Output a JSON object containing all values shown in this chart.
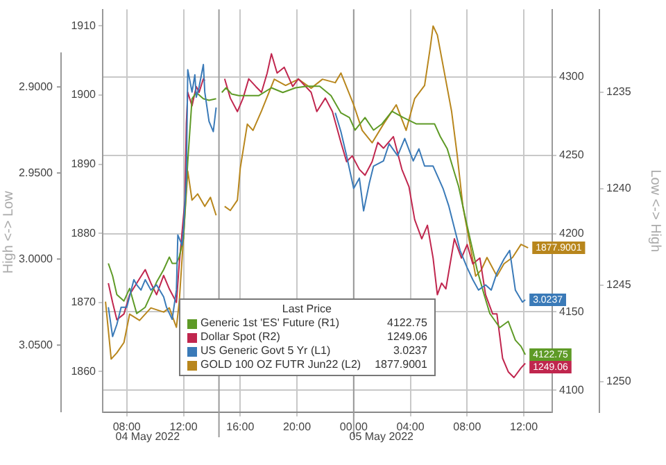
{
  "chart_data": [
    {
      "type": "line",
      "legend": "bottom",
      "legend_title": "Last Price",
      "grid": true,
      "marker": "none",
      "line_style": "solid",
      "y3label": "Low <-> High",
      "xlim": [
        "2022-05-04T06:18",
        "2022-05-05T14:00"
      ],
      "xticks": [
        {
          "value": "2022-05-04T08:00",
          "label": "08:00"
        },
        {
          "value": "2022-05-04T12:00",
          "label": "12:00"
        },
        {
          "value": "2022-05-04T16:00",
          "label": "16:00"
        },
        {
          "value": "2022-05-04T20:00",
          "label": "20:00"
        },
        {
          "value": "2022-05-05T00:00",
          "label": "00:00"
        },
        {
          "value": "2022-05-05T04:00",
          "label": "04:00"
        },
        {
          "value": "2022-05-05T08:00",
          "label": "08:00"
        },
        {
          "value": "2022-05-05T12:00",
          "label": "12:00"
        }
      ],
      "ylim": [
        1854.1,
        1912.4
      ],
      "yticks": [
        1860,
        1870,
        1880,
        1890,
        1900,
        1910
      ],
      "y2lim": [
        4086,
        4343
      ],
      "y2ticks": [
        4100,
        4150,
        4200,
        4250,
        4300
      ],
      "y3lim": [
        1251.6,
        1230.7
      ],
      "y3ticks": [
        1235,
        1240,
        1245,
        1250
      ],
      "ref_lines": [
        {
          "axis": "x",
          "value": "2022-05-04T14:30",
          "color": "#9a9a9a"
        },
        {
          "axis": "x",
          "value": "2022-05-05T00:00",
          "color": "#9a9a9a"
        }
      ],
      "annotations": [
        "04 May 2022",
        "05 May 2022"
      ],
      "series": [
        {
          "name": "Generic 1st 'ES' Future (R1)",
          "color": "#5e9a26",
          "axis": "y2",
          "x": [
            "2022-05-04T06:42",
            "2022-05-04T07:00",
            "2022-05-04T07:18",
            "2022-05-04T07:48",
            "2022-05-04T08:12",
            "2022-05-04T08:42",
            "2022-05-04T09:18",
            "2022-05-04T09:42",
            "2022-05-04T10:06",
            "2022-05-04T10:36",
            "2022-05-04T11:00",
            "2022-05-04T11:12",
            "2022-05-04T11:30",
            "2022-05-04T11:42",
            "2022-05-04T12:00",
            "2022-05-04T12:18",
            "2022-05-04T12:36",
            "2022-05-04T12:54",
            "2022-05-04T13:24",
            "2022-05-04T13:48",
            "2022-05-04T14:18",
            "2022-05-04T14:30",
            "2022-05-04T14:42",
            "2022-05-04T15:00",
            "2022-05-04T15:24",
            "2022-05-04T15:54",
            "2022-05-04T16:30",
            "2022-05-04T17:18",
            "2022-05-04T18:12",
            "2022-05-04T19:00",
            "2022-05-04T19:54",
            "2022-05-04T20:42",
            "2022-05-04T21:36",
            "2022-05-04T22:24",
            "2022-05-04T23:06",
            "2022-05-04T23:42",
            "2022-05-05T00:06",
            "2022-05-05T00:48",
            "2022-05-05T01:24",
            "2022-05-05T02:00",
            "2022-05-05T02:42",
            "2022-05-05T03:30",
            "2022-05-05T04:24",
            "2022-05-05T05:06",
            "2022-05-05T05:42",
            "2022-05-05T06:06",
            "2022-05-05T06:36",
            "2022-05-05T07:00",
            "2022-05-05T07:24",
            "2022-05-05T07:54",
            "2022-05-05T08:18",
            "2022-05-05T08:42",
            "2022-05-05T09:12",
            "2022-05-05T09:36",
            "2022-05-05T10:18",
            "2022-05-05T10:54",
            "2022-05-05T11:24",
            "2022-05-05T11:48",
            "2022-05-05T12:06"
          ],
          "values": [
            4181,
            4173,
            4161,
            4157,
            4165,
            4149,
            4153,
            4161,
            4169,
            4177,
            4185,
            4181,
            4181,
            4185,
            4197,
            4246,
            4286,
            4290,
            4286,
            4285,
            4286,
            null,
            4290,
            4293,
            4289,
            4288,
            4288,
            4288,
            4293,
            4290,
            4293,
            4294,
            4294,
            4288,
            4277,
            4274,
            4266,
            4274,
            4266,
            4270,
            4278,
            4274,
            4270,
            4270,
            4270,
            4262,
            4254,
            4242,
            4230,
            4209,
            4193,
            4177,
            4161,
            4149,
            4140,
            4144,
            4132,
            4128,
            4122.75
          ],
          "value_labels": [
            null,
            null,
            null,
            null,
            null,
            null,
            null,
            null,
            null,
            null,
            null,
            null,
            null,
            null,
            null,
            null,
            null,
            null,
            null,
            null,
            null,
            null,
            null,
            null,
            null,
            null,
            null,
            null,
            null,
            null,
            null,
            null,
            null,
            null,
            null,
            null,
            null,
            null,
            null,
            null,
            null,
            null,
            null,
            null,
            null,
            null,
            null,
            null,
            null,
            null,
            null,
            null,
            null,
            null,
            null,
            null,
            null,
            null,
            "4122.75"
          ]
        },
        {
          "name": "Dollar Spot (R2)",
          "color": "#c0264e",
          "axis": "y3",
          "x": [
            "2022-05-04T06:42",
            "2022-05-04T07:00",
            "2022-05-04T07:18",
            "2022-05-04T07:48",
            "2022-05-04T08:12",
            "2022-05-04T08:42",
            "2022-05-04T09:18",
            "2022-05-04T09:42",
            "2022-05-04T10:06",
            "2022-05-04T10:36",
            "2022-05-04T11:00",
            "2022-05-04T11:30",
            "2022-05-04T11:42",
            "2022-05-04T12:06",
            "2022-05-04T12:12",
            "2022-05-04T12:18",
            "2022-05-04T12:36",
            "2022-05-04T12:54",
            "2022-05-04T13:06",
            "2022-05-04T13:24",
            "2022-05-04T13:30",
            "2022-05-04T14:30",
            "2022-05-04T14:54",
            "2022-05-04T15:18",
            "2022-05-04T15:48",
            "2022-05-04T16:12",
            "2022-05-04T16:36",
            "2022-05-04T17:06",
            "2022-05-04T17:30",
            "2022-05-04T17:54",
            "2022-05-04T18:12",
            "2022-05-04T18:36",
            "2022-05-04T19:06",
            "2022-05-04T19:42",
            "2022-05-04T20:06",
            "2022-05-04T21:00",
            "2022-05-04T21:24",
            "2022-05-04T22:00",
            "2022-05-04T22:30",
            "2022-05-04T23:06",
            "2022-05-04T23:30",
            "2022-05-04T23:54",
            "2022-05-05T00:24",
            "2022-05-05T00:48",
            "2022-05-05T01:18",
            "2022-05-05T01:42",
            "2022-05-05T02:06",
            "2022-05-05T02:48",
            "2022-05-05T03:24",
            "2022-05-05T03:54",
            "2022-05-05T04:18",
            "2022-05-05T04:48",
            "2022-05-05T05:12",
            "2022-05-05T05:36",
            "2022-05-05T05:54",
            "2022-05-05T06:12",
            "2022-05-05T06:30",
            "2022-05-05T07:06",
            "2022-05-05T07:36",
            "2022-05-05T08:00",
            "2022-05-05T08:24",
            "2022-05-05T08:54",
            "2022-05-05T09:18",
            "2022-05-05T09:48",
            "2022-05-05T10:06",
            "2022-05-05T10:30",
            "2022-05-05T10:54",
            "2022-05-05T11:18",
            "2022-05-05T11:48",
            "2022-05-05T12:06"
          ],
          "values": [
            1244.9,
            1245.9,
            1246.8,
            1246.5,
            1245.5,
            1244.9,
            1244.2,
            1244.9,
            1245.5,
            1244.5,
            1245.2,
            1245.9,
            1243.9,
            1240.6,
            1236.6,
            1235,
            1235.7,
            1234.7,
            1235,
            1234.3,
            1234.4,
            null,
            1234.3,
            1235.3,
            1236,
            1235.3,
            1234.3,
            1234.7,
            1235,
            1234,
            1233,
            1234,
            1233.7,
            1234.7,
            1234.3,
            1235,
            1236,
            1235.3,
            1236,
            1237.6,
            1238.6,
            1238.3,
            1239,
            1239.3,
            1238.6,
            1237.6,
            1237.9,
            1237.3,
            1239,
            1239.9,
            1241.6,
            1242.6,
            1241.9,
            1243.6,
            1245.5,
            1244.9,
            1245.2,
            1242.6,
            1243.6,
            1242.9,
            1243.9,
            1243.6,
            1245.5,
            1246.5,
            1246.5,
            1248.8,
            1249.5,
            1249.8,
            1249.3,
            1249.06
          ],
          "value_labels": [
            null,
            null,
            null,
            null,
            null,
            null,
            null,
            null,
            null,
            null,
            null,
            null,
            null,
            null,
            null,
            null,
            null,
            null,
            null,
            null,
            null,
            null,
            null,
            null,
            null,
            null,
            null,
            null,
            null,
            null,
            null,
            null,
            null,
            null,
            null,
            null,
            null,
            null,
            null,
            null,
            null,
            null,
            null,
            null,
            null,
            null,
            null,
            null,
            null,
            null,
            null,
            null,
            null,
            null,
            null,
            null,
            null,
            null,
            null,
            null,
            null,
            null,
            null,
            null,
            null,
            null,
            null,
            null,
            null,
            "1249.06"
          ]
        },
        {
          "name": "GOLD 100 OZ FUTR Jun22 (L2)",
          "color": "#b8861c",
          "x": [
            "2022-05-04T06:30",
            "2022-05-04T06:54",
            "2022-05-04T07:18",
            "2022-05-04T07:48",
            "2022-05-04T08:12",
            "2022-05-04T08:54",
            "2022-05-04T09:42",
            "2022-05-04T10:36",
            "2022-05-04T11:00",
            "2022-05-04T11:30",
            "2022-05-04T11:42",
            "2022-05-04T12:18",
            "2022-05-04T12:36",
            "2022-05-04T13:00",
            "2022-05-04T13:30",
            "2022-05-04T13:54",
            "2022-05-04T14:18",
            "2022-05-04T14:36",
            "2022-05-04T14:54",
            "2022-05-04T15:18",
            "2022-05-04T15:48",
            "2022-05-04T16:00",
            "2022-05-04T16:30",
            "2022-05-04T16:54",
            "2022-05-04T17:30",
            "2022-05-04T18:24",
            "2022-05-04T19:12",
            "2022-05-04T20:06",
            "2022-05-04T21:00",
            "2022-05-04T21:48",
            "2022-05-04T22:42",
            "2022-05-04T23:06",
            "2022-05-05T00:00",
            "2022-05-05T00:36",
            "2022-05-05T01:18",
            "2022-05-05T02:06",
            "2022-05-05T03:00",
            "2022-05-05T03:42",
            "2022-05-05T04:18",
            "2022-05-05T05:00",
            "2022-05-05T05:24",
            "2022-05-05T05:36",
            "2022-05-05T05:54",
            "2022-05-05T06:24",
            "2022-05-05T06:54",
            "2022-05-05T07:18",
            "2022-05-05T07:42",
            "2022-05-05T08:12",
            "2022-05-05T08:36",
            "2022-05-05T09:00",
            "2022-05-05T09:24",
            "2022-05-05T10:06",
            "2022-05-05T10:36",
            "2022-05-05T11:12",
            "2022-05-05T11:48",
            "2022-05-05T12:18"
          ],
          "values": [
            1870.1,
            1861.8,
            1862.7,
            1864.2,
            1868.3,
            1867.4,
            1869.2,
            1868.6,
            1869.2,
            1866.4,
            1870.1,
            1889,
            1884.8,
            1885.7,
            1883.9,
            1885.2,
            1882.6,
            null,
            1883.9,
            1883.3,
            1884.8,
            1889.4,
            1895.8,
            1894.9,
            1897.7,
            1902.3,
            1901.4,
            1902.3,
            1901,
            1902.3,
            1901.8,
            1903.2,
            1898.6,
            1894.9,
            1893.1,
            1895.8,
            1898.6,
            1894.9,
            1899.5,
            1901.4,
            1906.9,
            1910,
            1908.7,
            1903.2,
            1897.7,
            1891.3,
            1883.9,
            1878.4,
            1873.8,
            1874.7,
            1876.5,
            1873.8,
            1875.6,
            1876.5,
            1878.4,
            1877.9001
          ],
          "value_labels": [
            null,
            null,
            null,
            null,
            null,
            null,
            null,
            null,
            null,
            null,
            null,
            null,
            null,
            null,
            null,
            null,
            null,
            null,
            null,
            null,
            null,
            null,
            null,
            null,
            null,
            null,
            null,
            null,
            null,
            null,
            null,
            null,
            null,
            null,
            null,
            null,
            null,
            null,
            null,
            null,
            null,
            null,
            null,
            null,
            null,
            null,
            null,
            null,
            null,
            null,
            null,
            null,
            null,
            null,
            null,
            "1877.9001"
          ]
        }
      ]
    },
    {
      "type": "line",
      "tick_labels": "y",
      "marker": "none",
      "line_style": "solid",
      "ylabel": "High <-> Low",
      "xlim": [
        "2022-05-04T06:18",
        "2022-05-05T14:00"
      ],
      "ylim": [
        3.089,
        2.88
      ],
      "yticks": [
        {
          "value": 2.9,
          "label": "2.9000"
        },
        {
          "value": 2.95,
          "label": "2.9500"
        },
        {
          "value": 3.0,
          "label": "3.0000"
        },
        {
          "value": 3.05,
          "label": "3.0500"
        }
      ],
      "series": [
        {
          "name": "US Generic Govt 5 Yr (L1)",
          "color": "#3a7ab8",
          "x": [
            "2022-05-04T06:42",
            "2022-05-04T07:00",
            "2022-05-04T07:18",
            "2022-05-04T07:36",
            "2022-05-04T08:00",
            "2022-05-04T08:30",
            "2022-05-04T08:42",
            "2022-05-04T09:00",
            "2022-05-04T09:18",
            "2022-05-04T09:42",
            "2022-05-04T10:06",
            "2022-05-04T10:36",
            "2022-05-04T10:48",
            "2022-05-04T11:12",
            "2022-05-04T11:30",
            "2022-05-04T11:36",
            "2022-05-04T11:54",
            "2022-05-04T12:00",
            "2022-05-04T12:12",
            "2022-05-04T12:18",
            "2022-05-04T12:36",
            "2022-05-04T12:48",
            "2022-05-04T12:54",
            "2022-05-04T13:06",
            "2022-05-04T13:24",
            "2022-05-04T13:30",
            "2022-05-04T13:48",
            "2022-05-04T14:06",
            "2022-05-04T14:18",
            "2022-05-04T14:36",
            "2022-05-04T22:42",
            "2022-05-04T23:06",
            "2022-05-04T23:30",
            "2022-05-05T00:00",
            "2022-05-05T00:24",
            "2022-05-05T00:42",
            "2022-05-05T01:06",
            "2022-05-05T01:24",
            "2022-05-05T02:06",
            "2022-05-05T02:30",
            "2022-05-05T03:06",
            "2022-05-05T03:36",
            "2022-05-05T04:12",
            "2022-05-05T04:36",
            "2022-05-05T05:00",
            "2022-05-05T05:36",
            "2022-05-05T06:18",
            "2022-05-05T06:42",
            "2022-05-05T07:06",
            "2022-05-05T07:30",
            "2022-05-05T08:00",
            "2022-05-05T08:24",
            "2022-05-05T08:48",
            "2022-05-05T09:18",
            "2022-05-05T09:42",
            "2022-05-05T10:06",
            "2022-05-05T10:36",
            "2022-05-05T11:00",
            "2022-05-05T11:24",
            "2022-05-05T11:54",
            "2022-05-05T12:06"
          ],
          "values": [
            3.028,
            3.045,
            3.038,
            3.028,
            3.028,
            3.012,
            3.015,
            3.018,
            3.012,
            3.018,
            3.015,
            3.022,
            3.028,
            3.035,
            3.018,
            2.986,
            2.992,
            2.982,
            2.953,
            2.89,
            2.903,
            2.893,
            2.906,
            2.9,
            2.887,
            2.903,
            2.92,
            2.926,
            2.912,
            null,
            2.915,
            2.926,
            2.94,
            2.959,
            2.953,
            2.972,
            2.956,
            2.946,
            2.943,
            2.933,
            2.94,
            2.93,
            2.943,
            2.936,
            2.946,
            2.946,
            2.959,
            2.969,
            2.982,
            2.995,
            3.005,
            3.012,
            3.018,
            3.015,
            3.018,
            3.008,
            3.0,
            2.995,
            3.018,
            3.025,
            3.0237
          ],
          "value_labels": [
            null,
            null,
            null,
            null,
            null,
            null,
            null,
            null,
            null,
            null,
            null,
            null,
            null,
            null,
            null,
            null,
            null,
            null,
            null,
            null,
            null,
            null,
            null,
            null,
            null,
            null,
            null,
            null,
            null,
            null,
            null,
            null,
            null,
            null,
            null,
            null,
            null,
            null,
            null,
            null,
            null,
            null,
            null,
            null,
            null,
            null,
            null,
            null,
            null,
            null,
            null,
            null,
            null,
            null,
            null,
            null,
            null,
            null,
            null,
            null,
            "3.0237"
          ]
        }
      ]
    }
  ]
}
